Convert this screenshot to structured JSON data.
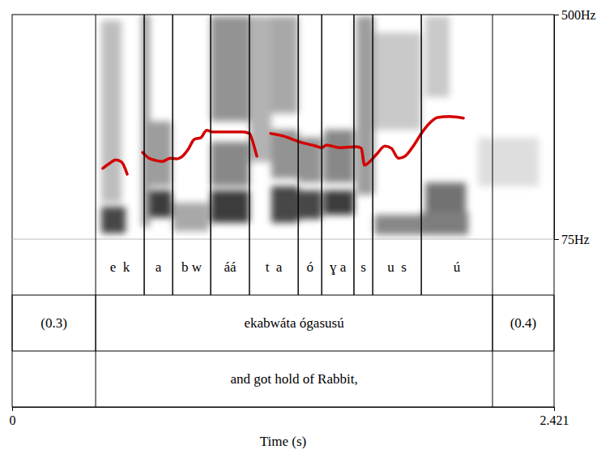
{
  "chart_data": {
    "type": "spectrogram",
    "x_label": "Time (s)",
    "xlim": [
      0,
      2.421
    ],
    "xticks": [
      0,
      2.421
    ],
    "ylim": [
      75,
      500
    ],
    "yticks": [
      {
        "value": 75,
        "label": "75Hz"
      },
      {
        "value": 500,
        "label": "500Hz"
      }
    ],
    "color": "#d40000",
    "x": [
      0.405,
      0.434,
      0.463,
      0.489,
      0.514,
      0.548,
      0.583,
      0.612,
      0.641,
      0.67,
      0.706,
      0.735,
      0.764,
      0.785,
      0.814,
      0.843,
      0.869,
      0.894,
      0.959,
      1.031,
      1.06,
      1.078,
      1.093,
      1.124,
      1.155,
      1.212,
      1.285,
      1.357,
      1.383,
      1.404,
      1.466,
      1.538,
      1.56,
      1.574,
      1.596,
      1.629,
      1.665,
      1.694,
      1.726,
      1.755,
      1.792,
      1.828,
      1.864,
      1.9,
      1.954,
      2.016
    ],
    "values": [
      209,
      218,
      225,
      221,
      198,
      null,
      239,
      228,
      224,
      222,
      228,
      227,
      233,
      244,
      264,
      267,
      281,
      278,
      278,
      278,
      275,
      255,
      232,
      null,
      275,
      270,
      259,
      251,
      248,
      253,
      248,
      250,
      247,
      215,
      221,
      236,
      251,
      247,
      228,
      232,
      251,
      275,
      294,
      305,
      307,
      304
    ],
    "spectrogram": [
      {
        "t0": 0.398,
        "t1": 0.507,
        "f0": 86,
        "f1": 136,
        "level": 0.85
      },
      {
        "t0": 0.398,
        "t1": 0.489,
        "f0": 144,
        "f1": 489,
        "level": 0.3
      },
      {
        "t0": 0.579,
        "t1": 0.615,
        "f0": 98,
        "f1": 500,
        "level": 0.45
      },
      {
        "t0": 0.615,
        "t1": 0.713,
        "f0": 116,
        "f1": 167,
        "level": 0.9
      },
      {
        "t0": 0.615,
        "t1": 0.713,
        "f0": 175,
        "f1": 298,
        "level": 0.45
      },
      {
        "t0": 0.717,
        "t1": 0.879,
        "f0": 90,
        "f1": 144,
        "level": 0.4
      },
      {
        "t0": 0.887,
        "t1": 1.06,
        "f0": 106,
        "f1": 167,
        "level": 0.9
      },
      {
        "t0": 0.887,
        "t1": 1.06,
        "f0": 175,
        "f1": 259,
        "level": 0.55
      },
      {
        "t0": 0.887,
        "t1": 1.06,
        "f0": 298,
        "f1": 497,
        "level": 0.5
      },
      {
        "t0": 1.06,
        "t1": 1.158,
        "f0": 221,
        "f1": 497,
        "level": 0.35
      },
      {
        "t0": 1.158,
        "t1": 1.278,
        "f0": 106,
        "f1": 175,
        "level": 0.85
      },
      {
        "t0": 1.158,
        "t1": 1.278,
        "f0": 190,
        "f1": 282,
        "level": 0.5
      },
      {
        "t0": 1.158,
        "t1": 1.278,
        "f0": 313,
        "f1": 497,
        "level": 0.4
      },
      {
        "t0": 1.278,
        "t1": 1.383,
        "f0": 113,
        "f1": 167,
        "level": 0.85
      },
      {
        "t0": 1.278,
        "t1": 1.383,
        "f0": 182,
        "f1": 267,
        "level": 0.5
      },
      {
        "t0": 1.393,
        "t1": 1.527,
        "f0": 121,
        "f1": 167,
        "level": 0.9
      },
      {
        "t0": 1.393,
        "t1": 1.527,
        "f0": 182,
        "f1": 282,
        "level": 0.55
      },
      {
        "t0": 1.538,
        "t1": 1.618,
        "f0": 159,
        "f1": 497,
        "level": 0.45
      },
      {
        "t0": 1.618,
        "t1": 1.828,
        "f0": 83,
        "f1": 121,
        "level": 0.55
      },
      {
        "t0": 1.618,
        "t1": 1.828,
        "f0": 282,
        "f1": 466,
        "level": 0.25
      },
      {
        "t0": 1.828,
        "t1": 2.038,
        "f0": 83,
        "f1": 126,
        "level": 0.6
      },
      {
        "t0": 1.846,
        "t1": 2.027,
        "f0": 126,
        "f1": 182,
        "level": 0.65
      },
      {
        "t0": 1.846,
        "t1": 1.954,
        "f0": 344,
        "f1": 497,
        "level": 0.25
      },
      {
        "t0": 2.081,
        "t1": 2.353,
        "f0": 175,
        "f1": 267,
        "level": 0.15
      }
    ],
    "tiers": [
      {
        "intervals": [
          {
            "start": 0.373,
            "end": 0.59,
            "label": "e  k"
          },
          {
            "start": 0.59,
            "end": 0.717,
            "label": "a"
          },
          {
            "start": 0.717,
            "end": 0.887,
            "label": "b w"
          },
          {
            "start": 0.887,
            "end": 1.06,
            "label": "áá"
          },
          {
            "start": 1.06,
            "end": 1.278,
            "label": "t  a"
          },
          {
            "start": 1.278,
            "end": 1.383,
            "label": "ó"
          },
          {
            "start": 1.383,
            "end": 1.527,
            "label": "ɣ a"
          },
          {
            "start": 1.527,
            "end": 1.611,
            "label": "s"
          },
          {
            "start": 1.611,
            "end": 1.828,
            "label": "u  s"
          },
          {
            "start": 1.828,
            "end": 2.146,
            "label": "ú"
          }
        ]
      },
      {
        "intervals": [
          {
            "start": 0,
            "end": 0.373,
            "label": "(0.3)"
          },
          {
            "start": 0.373,
            "end": 2.146,
            "label": "ekabwáta ógasusú"
          },
          {
            "start": 2.146,
            "end": 2.421,
            "label": "(0.4)"
          }
        ]
      },
      {
        "intervals": [
          {
            "start": 0.373,
            "end": 2.146,
            "label": "and got hold of Rabbit,"
          }
        ]
      }
    ]
  }
}
